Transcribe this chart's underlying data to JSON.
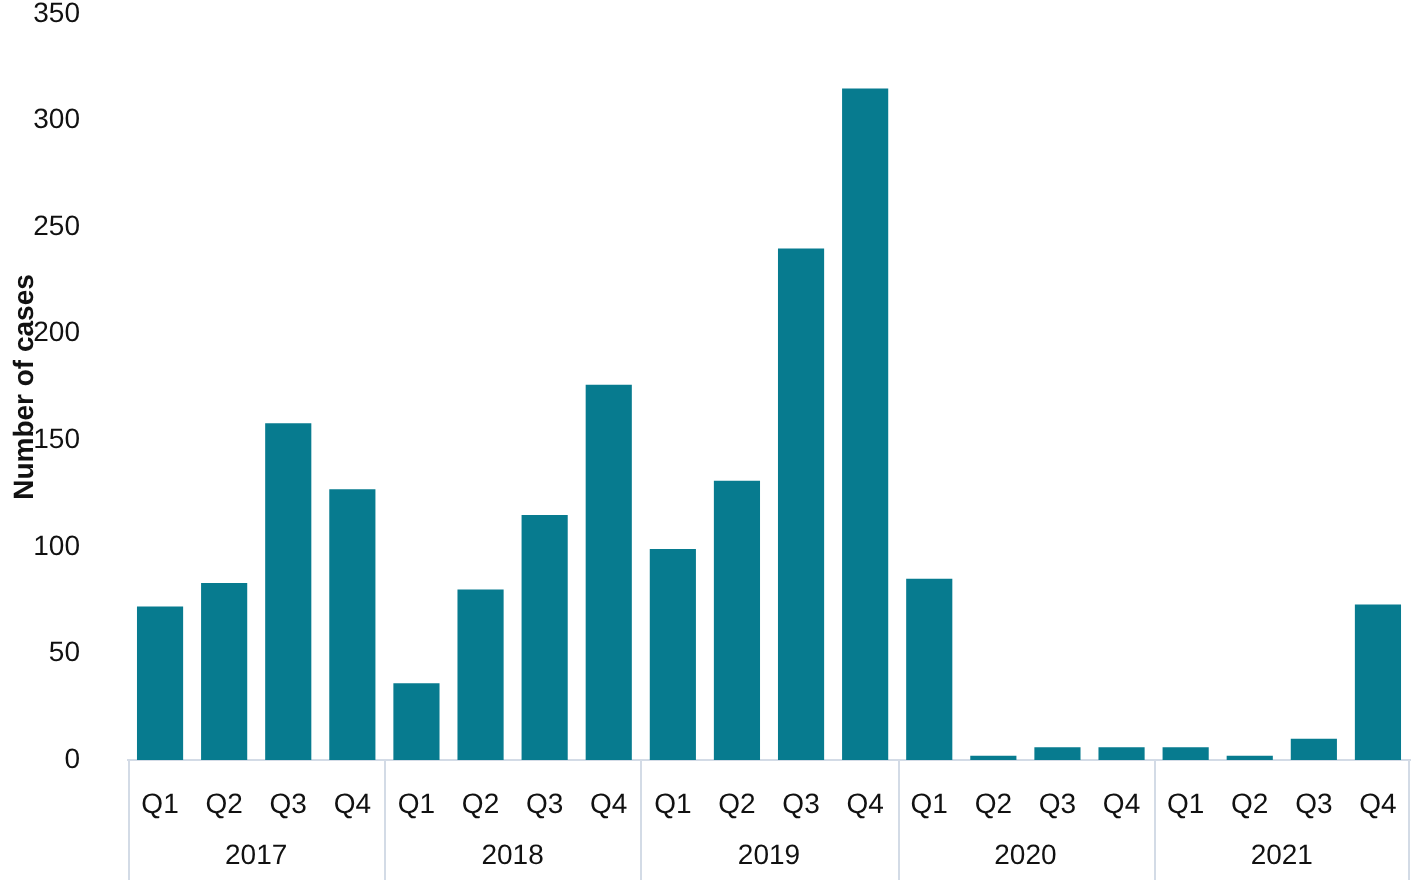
{
  "chart_data": {
    "type": "bar",
    "ylabel": "Number of cases",
    "categories": [
      "Q1",
      "Q2",
      "Q3",
      "Q4",
      "Q1",
      "Q2",
      "Q3",
      "Q4",
      "Q1",
      "Q2",
      "Q3",
      "Q4",
      "Q1",
      "Q2",
      "Q3",
      "Q4",
      "Q1",
      "Q2",
      "Q3",
      "Q4"
    ],
    "values": [
      72,
      83,
      158,
      127,
      36,
      80,
      115,
      176,
      99,
      131,
      240,
      315,
      85,
      2,
      6,
      6,
      6,
      2,
      10,
      73
    ],
    "color": "#077b8f",
    "ylim": [
      0,
      350
    ],
    "yticks": [
      0,
      50,
      100,
      150,
      200,
      250,
      300,
      350
    ],
    "annotations": [
      "2017",
      "2018",
      "2019",
      "2020",
      "2021"
    ]
  }
}
